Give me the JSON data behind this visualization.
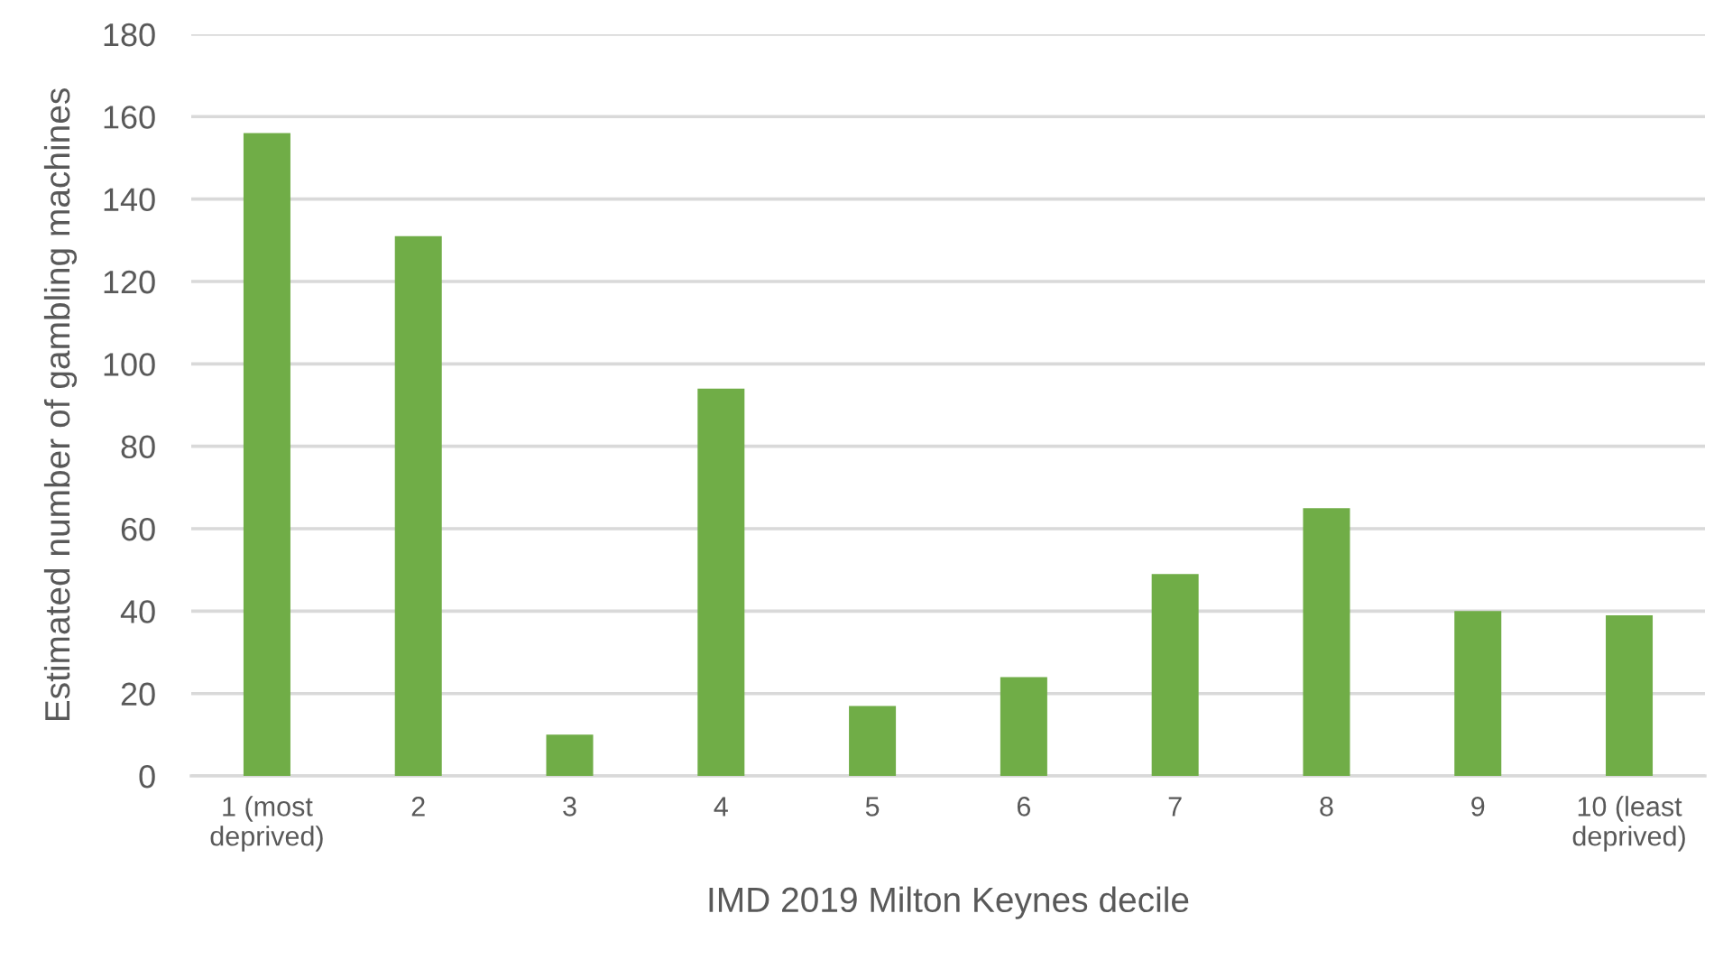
{
  "chart_data": {
    "type": "bar",
    "xlabel": "IMD 2019 Milton Keynes decile",
    "ylabel": "Estimated number of gambling machines",
    "categories": [
      "1 (most\ndeprived)",
      "2",
      "3",
      "4",
      "5",
      "6",
      "7",
      "8",
      "9",
      "10 (least\ndeprived)"
    ],
    "values": [
      156,
      131,
      10,
      94,
      17,
      24,
      49,
      65,
      40,
      39
    ],
    "color": "#70ad47",
    "ylim": [
      0,
      180
    ],
    "yticks": [
      0,
      20,
      40,
      60,
      80,
      100,
      120,
      140,
      160,
      180
    ],
    "grid": "y"
  }
}
